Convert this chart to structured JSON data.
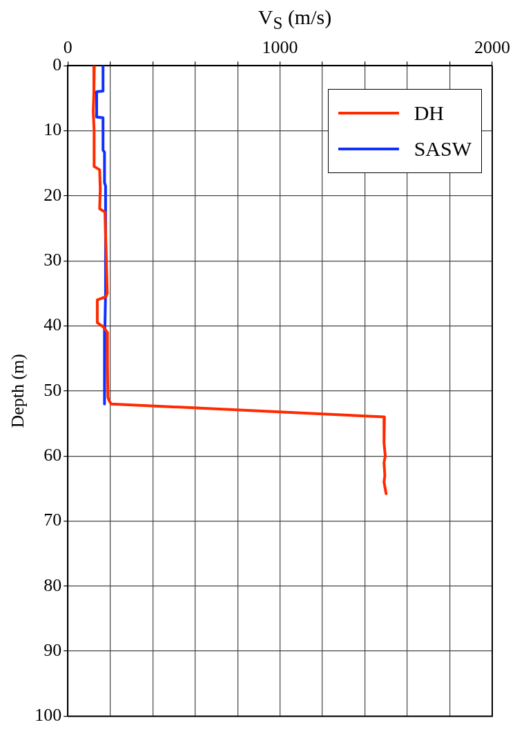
{
  "chart_data": {
    "type": "line",
    "xlabel": "V$_{S}$ (m/s)",
    "ylabel": "Depth (m)",
    "xlim": [
      0,
      2000
    ],
    "xticks": [
      0,
      {
        "value": 200,
        "label": null
      },
      {
        "value": 400,
        "label": null
      },
      {
        "value": 600,
        "label": null
      },
      {
        "value": 800,
        "label": null
      },
      1000,
      {
        "value": 1200,
        "label": null
      },
      {
        "value": 1400,
        "label": null
      },
      {
        "value": 1600,
        "label": null
      },
      {
        "value": 1800,
        "label": null
      },
      2000
    ],
    "ylim": [
      100,
      0
    ],
    "yticks": [
      0,
      10,
      20,
      30,
      40,
      50,
      60,
      70,
      80,
      90,
      100
    ],
    "grid": true,
    "legend": "top right",
    "marker": "none",
    "line_style": "solid",
    "series": [
      {
        "name": "DH",
        "color": "#ff2a00",
        "x": [
          125,
          123,
          120,
          124,
          124,
          150,
          153,
          150,
          175,
          180,
          186,
          180,
          139,
          139,
          169,
          186,
          187,
          189,
          195,
          204,
          1492,
          1490,
          1496,
          1490,
          1494,
          1490,
          1500
        ],
        "values": [
          0,
          4,
          7,
          10,
          15.5,
          16,
          19,
          22,
          22.5,
          28,
          35,
          35.5,
          36,
          39.5,
          40.2,
          41,
          46,
          51,
          51.5,
          52,
          54,
          58,
          60,
          61,
          63,
          64,
          65.8
        ]
      },
      {
        "name": "SASW",
        "color": "#1030ff",
        "x": [
          166,
          166,
          136,
          136,
          166,
          166,
          173,
          173,
          178,
          178,
          175,
          173
        ],
        "values": [
          0,
          3.9,
          4,
          7.9,
          8,
          13,
          13.3,
          18,
          18.5,
          35,
          40,
          52
        ]
      }
    ]
  }
}
